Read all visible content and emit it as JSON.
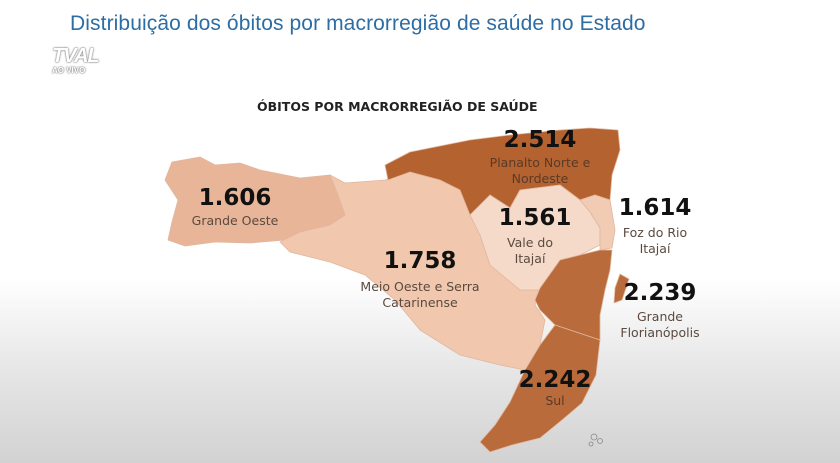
{
  "header": {
    "title": "Distribuição dos óbitos por macrorregião de saúde no Estado"
  },
  "broadcaster": {
    "logo": "TVAL",
    "live": "AO VIVO"
  },
  "map": {
    "subtitle": "ÓBITOS POR MACRORREGIÃO DE SAÚDE",
    "regions": [
      {
        "name": "Grande Oeste",
        "value": "1.606",
        "color": "#e9b598"
      },
      {
        "name": "Meio Oeste e Serra Catarinense",
        "value": "1.758",
        "color": "#f1c7ad"
      },
      {
        "name": "Planalto Norte e Nordeste",
        "value": "2.514",
        "color": "#b4622f"
      },
      {
        "name": "Vale do Itajaí",
        "value": "1.561",
        "color": "#f6dac9"
      },
      {
        "name": "Foz do Rio Itajaí",
        "value": "1.614",
        "color": "#f1cbb4"
      },
      {
        "name": "Grande Florianópolis",
        "value": "2.239",
        "color": "#b96b3b"
      },
      {
        "name": "Sul",
        "value": "2.242",
        "color": "#b96b3b"
      }
    ]
  }
}
